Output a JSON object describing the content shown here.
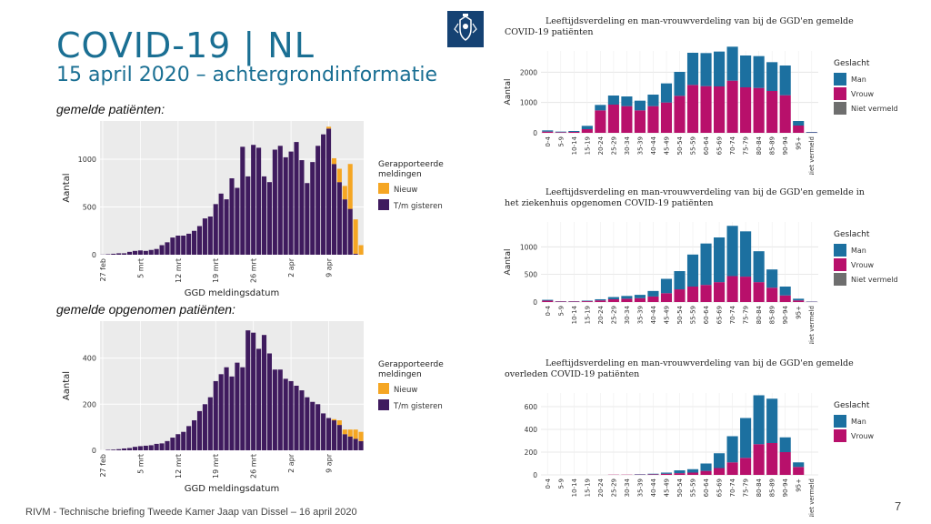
{
  "slide": {
    "title": "COVID-19 | NL",
    "subtitle": "15 april 2020 – achtergrondinformatie",
    "label_reported": "gemelde patiënten:",
    "label_hospital": "gemelde opgenomen patiënten:",
    "footer": "RIVM - Technische briefing Tweede Kamer Jaap van Dissel – 16 april 2020",
    "page_number": "7",
    "emblem_icon": "rijksoverheid-crest",
    "colors": {
      "title": "#1a6f93",
      "purple": "#3f1b5e",
      "orange": "#f5a623",
      "man": "#1c70a0",
      "vrouw": "#b8106b",
      "niet": "#6e6e6e"
    }
  },
  "chart_data": [
    {
      "id": "reported_daily",
      "type": "bar",
      "title": "",
      "xlabel": "GGD meldingsdatum",
      "ylabel": "Aantal",
      "ylim": [
        0,
        1400
      ],
      "yticks": [
        0,
        500,
        1000
      ],
      "xtick_labels": [
        "27 feb",
        "5 mrt",
        "12 mrt",
        "19 mrt",
        "26 mrt",
        "2 apr",
        "9 apr"
      ],
      "xtick_day_index": [
        0,
        7,
        14,
        21,
        28,
        35,
        42
      ],
      "legend_title": "Gerapporteerde meldingen",
      "series": [
        {
          "name": "T/m gisteren",
          "values": [
            2,
            5,
            10,
            15,
            15,
            30,
            40,
            45,
            40,
            50,
            60,
            100,
            130,
            180,
            200,
            200,
            220,
            250,
            300,
            380,
            400,
            530,
            640,
            580,
            800,
            700,
            1130,
            820,
            1150,
            1120,
            820,
            760,
            1100,
            1140,
            1020,
            1080,
            1180,
            990,
            750,
            970,
            1140,
            1260,
            1320,
            950,
            760,
            580,
            480,
            10,
            0
          ]
        },
        {
          "name": "Nieuw",
          "values": [
            0,
            0,
            0,
            0,
            0,
            0,
            0,
            0,
            0,
            0,
            0,
            0,
            0,
            0,
            0,
            0,
            0,
            0,
            0,
            0,
            0,
            0,
            0,
            0,
            0,
            0,
            0,
            0,
            0,
            0,
            0,
            0,
            0,
            0,
            0,
            0,
            0,
            0,
            0,
            0,
            0,
            0,
            20,
            60,
            140,
            140,
            470,
            360,
            100
          ]
        }
      ]
    },
    {
      "id": "hospital_daily",
      "type": "bar",
      "title": "",
      "xlabel": "GGD meldingsdatum",
      "ylabel": "Aantal",
      "ylim": [
        0,
        560
      ],
      "yticks": [
        0,
        200,
        400
      ],
      "xtick_labels": [
        "27 feb",
        "5 mrt",
        "12 mrt",
        "19 mrt",
        "26 mrt",
        "2 apr",
        "9 apr"
      ],
      "xtick_day_index": [
        0,
        7,
        14,
        21,
        28,
        35,
        42
      ],
      "legend_title": "Gerapporteerde meldingen",
      "series": [
        {
          "name": "T/m gisteren",
          "values": [
            0,
            2,
            3,
            5,
            8,
            10,
            15,
            18,
            20,
            22,
            28,
            30,
            40,
            55,
            70,
            80,
            105,
            130,
            170,
            200,
            230,
            300,
            330,
            360,
            320,
            380,
            360,
            520,
            510,
            440,
            500,
            420,
            350,
            350,
            310,
            300,
            280,
            260,
            230,
            210,
            200,
            160,
            140,
            130,
            110,
            70,
            60,
            50,
            40
          ]
        },
        {
          "name": "Nieuw",
          "values": [
            0,
            0,
            0,
            0,
            0,
            0,
            0,
            0,
            0,
            0,
            0,
            0,
            0,
            0,
            0,
            0,
            0,
            0,
            0,
            0,
            0,
            0,
            0,
            0,
            0,
            0,
            0,
            0,
            0,
            0,
            0,
            0,
            0,
            0,
            0,
            0,
            0,
            0,
            0,
            0,
            0,
            0,
            0,
            5,
            20,
            20,
            30,
            40,
            40
          ]
        }
      ]
    },
    {
      "id": "age_sex_reported",
      "type": "bar",
      "title": "Leeftijdsverdeling en man-vrouwverdeling van bij de GGD'en gemelde COVID-19 patiënten",
      "xlabel": "",
      "ylabel": "Aantal",
      "ylim": [
        0,
        2700
      ],
      "yticks": [
        0,
        1000,
        2000
      ],
      "legend_title": "Geslacht",
      "categories": [
        "0-4",
        "5-9",
        "10-14",
        "15-19",
        "20-24",
        "25-29",
        "30-34",
        "35-39",
        "40-44",
        "45-49",
        "50-54",
        "55-59",
        "60-64",
        "65-69",
        "70-74",
        "75-79",
        "80-84",
        "85-89",
        "90-94",
        "95+",
        "Niet vermeld"
      ],
      "series": [
        {
          "name": "Vrouw",
          "values": [
            40,
            20,
            30,
            120,
            740,
            930,
            880,
            740,
            880,
            1000,
            1220,
            1580,
            1540,
            1530,
            1720,
            1500,
            1480,
            1380,
            1240,
            240,
            10
          ]
        },
        {
          "name": "Man",
          "values": [
            40,
            20,
            30,
            110,
            180,
            300,
            320,
            320,
            380,
            630,
            790,
            1060,
            1090,
            1150,
            1120,
            1050,
            1050,
            950,
            980,
            150,
            20
          ]
        },
        {
          "name": "Niet vermeld",
          "values": [
            0,
            0,
            0,
            0,
            0,
            0,
            0,
            0,
            0,
            0,
            0,
            0,
            0,
            0,
            0,
            0,
            0,
            0,
            0,
            0,
            0
          ]
        }
      ]
    },
    {
      "id": "age_sex_hospital",
      "type": "bar",
      "title": "Leeftijdsverdeling en man-vrouwverdeling van bij de GGD'en gemelde in het ziekenhuis opgenomen COVID-19 patiënten",
      "xlabel": "",
      "ylabel": "Aantal",
      "ylim": [
        0,
        1450
      ],
      "yticks": [
        0,
        500,
        1000
      ],
      "legend_title": "Geslacht",
      "categories": [
        "0-4",
        "5-9",
        "10-14",
        "15-19",
        "20-24",
        "25-29",
        "30-34",
        "35-39",
        "40-44",
        "45-49",
        "50-54",
        "55-59",
        "60-64",
        "65-69",
        "70-74",
        "75-79",
        "80-84",
        "85-89",
        "90-94",
        "95+",
        "Niet vermeld"
      ],
      "series": [
        {
          "name": "Vrouw",
          "values": [
            25,
            10,
            10,
            15,
            30,
            50,
            60,
            70,
            100,
            160,
            230,
            280,
            310,
            360,
            470,
            460,
            360,
            260,
            120,
            30,
            5
          ]
        },
        {
          "name": "Man",
          "values": [
            15,
            5,
            5,
            10,
            20,
            40,
            50,
            60,
            100,
            260,
            330,
            580,
            750,
            810,
            910,
            820,
            560,
            330,
            160,
            30,
            5
          ]
        },
        {
          "name": "Niet vermeld",
          "values": [
            0,
            0,
            0,
            0,
            0,
            0,
            0,
            0,
            0,
            0,
            0,
            0,
            0,
            0,
            0,
            0,
            0,
            0,
            0,
            0,
            0
          ]
        }
      ]
    },
    {
      "id": "age_sex_deceased",
      "type": "bar",
      "title": "Leeftijdsverdeling en man-vrouwverdeling van bij de GGD'en gemelde overleden COVID-19 patiënten",
      "xlabel": "",
      "ylabel": "",
      "ylim": [
        0,
        720
      ],
      "yticks": [
        0,
        200,
        400,
        600
      ],
      "legend_title": "Geslacht",
      "categories": [
        "0-4",
        "5-9",
        "10-14",
        "15-19",
        "20-24",
        "25-29",
        "30-34",
        "35-39",
        "40-44",
        "45-49",
        "50-54",
        "55-59",
        "60-64",
        "65-69",
        "70-74",
        "75-79",
        "80-84",
        "85-89",
        "90-94",
        "95+",
        "Niet vermeld"
      ],
      "series": [
        {
          "name": "Vrouw",
          "values": [
            0,
            0,
            0,
            0,
            0,
            2,
            2,
            3,
            5,
            10,
            15,
            20,
            35,
            60,
            110,
            150,
            270,
            280,
            200,
            70,
            0
          ]
        },
        {
          "name": "Man",
          "values": [
            0,
            0,
            0,
            0,
            0,
            0,
            0,
            3,
            5,
            10,
            25,
            30,
            65,
            130,
            230,
            350,
            430,
            390,
            130,
            40,
            0
          ]
        }
      ]
    }
  ]
}
